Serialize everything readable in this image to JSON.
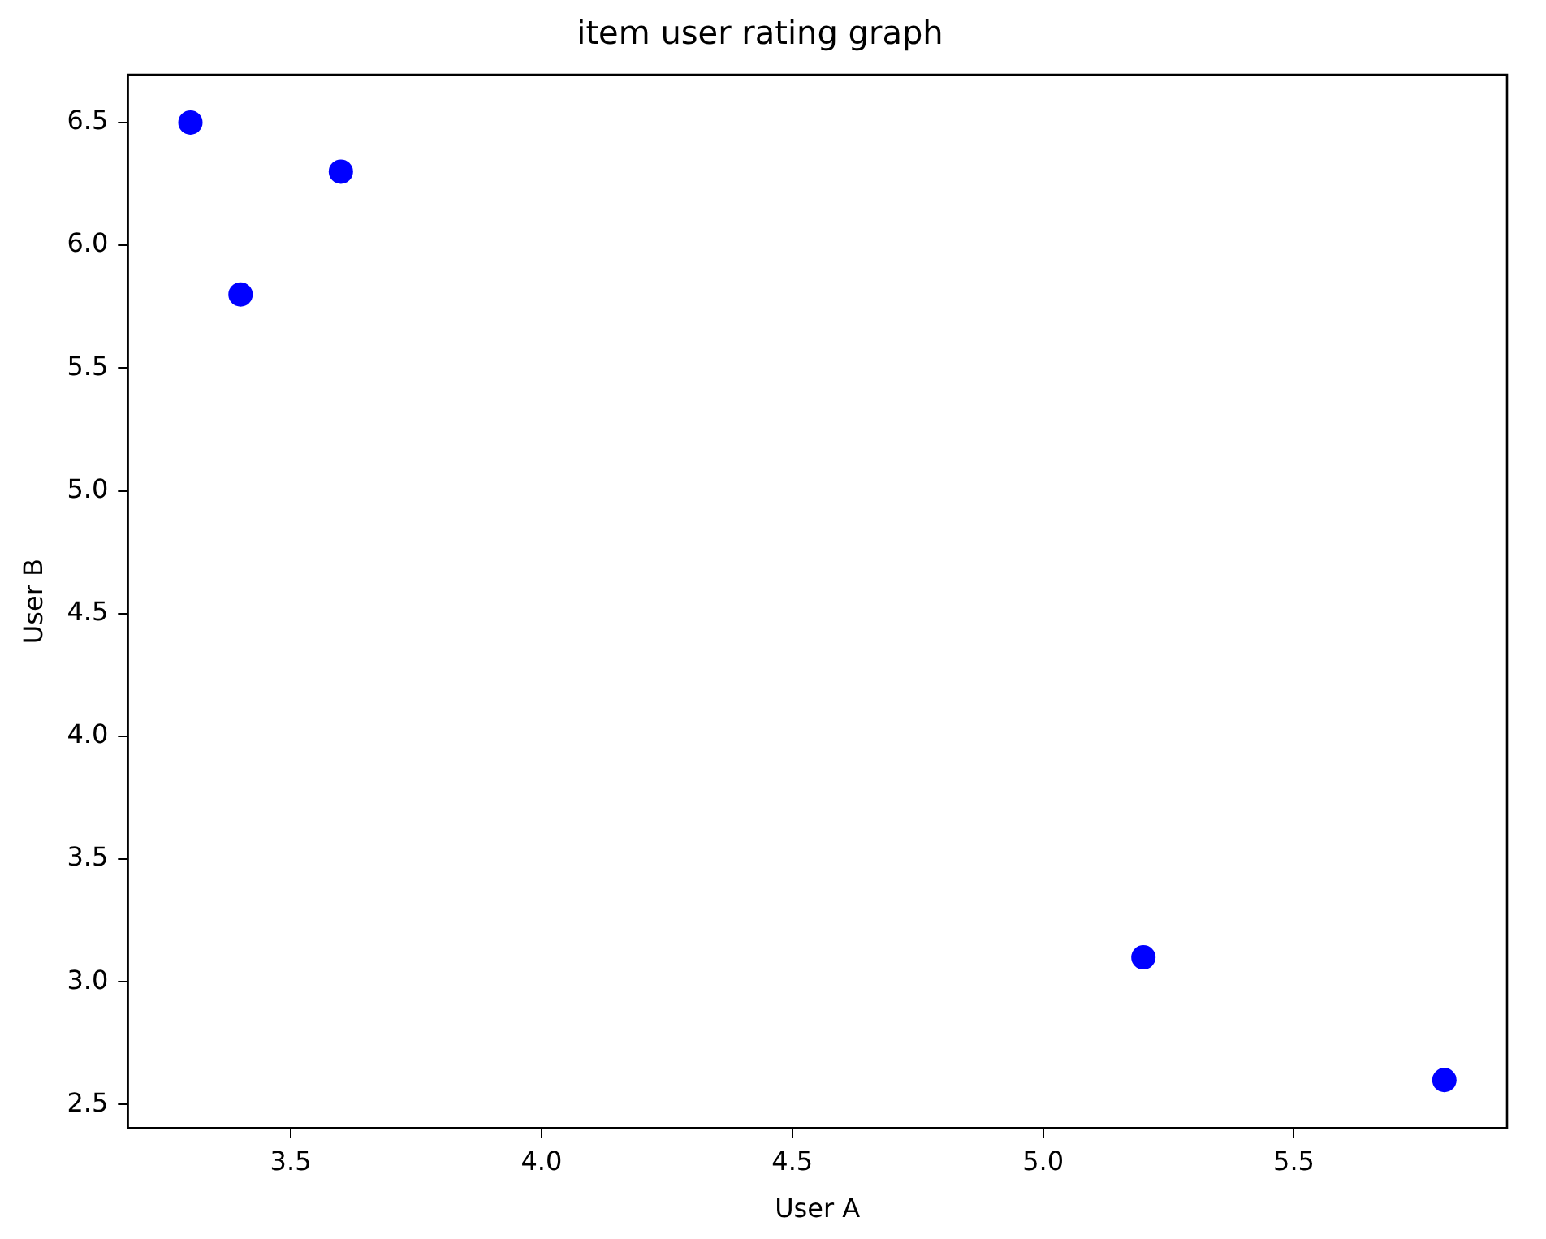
{
  "chart_data": {
    "type": "scatter",
    "title": "item user rating graph",
    "xlabel": "User A",
    "ylabel": "User B",
    "x": [
      3.3,
      3.4,
      3.6,
      5.2,
      5.8
    ],
    "series": [
      {
        "color": "#0000ff",
        "values": [
          6.5,
          5.8,
          6.3,
          3.1,
          2.6
        ]
      }
    ],
    "xlim": [
      3.175,
      5.925
    ],
    "ylim": [
      2.405,
      6.695
    ],
    "xticks": [
      3.5,
      {
        "value": 4,
        "label": "4.0"
      },
      4.5,
      {
        "value": 5,
        "label": "5.0"
      },
      5.5
    ],
    "yticks": [
      2.5,
      {
        "value": 3,
        "label": "3.0"
      },
      3.5,
      {
        "value": 4,
        "label": "4.0"
      },
      4.5,
      {
        "value": 5,
        "label": "5.0"
      },
      5.5,
      {
        "value": 6,
        "label": "6.0"
      },
      6.5
    ],
    "grid": false,
    "legend": false,
    "marker": "circle"
  }
}
